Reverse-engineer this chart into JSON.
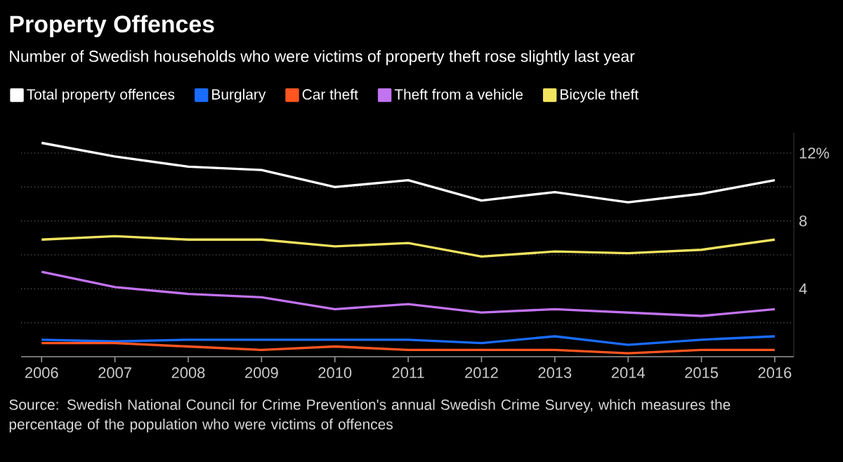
{
  "chart_data": {
    "type": "line",
    "title": "Property Offences",
    "subtitle": "Number of Swedish households who were victims of property theft rose slightly last year",
    "annotations": [
      "Source: Swedish National Council for Crime Prevention's annual Swedish Crime Survey, which measures the percentage of the population who were victims of offences"
    ],
    "categories": [
      "2006",
      "2007",
      "2008",
      "2009",
      "2010",
      "2011",
      "2012",
      "2013",
      "2014",
      "2015",
      "2016"
    ],
    "series": [
      {
        "name": "Total property offences",
        "color": "#ffffff",
        "values": [
          12.6,
          11.8,
          11.2,
          11.0,
          10.0,
          10.4,
          9.2,
          9.7,
          9.1,
          9.6,
          10.4
        ]
      },
      {
        "name": "Burglary",
        "color": "#1a6cff",
        "values": [
          1.0,
          0.9,
          1.0,
          1.0,
          1.0,
          1.0,
          0.8,
          1.2,
          0.7,
          1.0,
          1.2
        ]
      },
      {
        "name": "Car theft",
        "color": "#ff5520",
        "values": [
          0.8,
          0.8,
          0.6,
          0.4,
          0.6,
          0.4,
          0.4,
          0.4,
          0.2,
          0.4,
          0.4
        ]
      },
      {
        "name": "Theft from a vehicle",
        "color": "#c273f2",
        "values": [
          5.0,
          4.1,
          3.7,
          3.5,
          2.8,
          3.1,
          2.6,
          2.8,
          2.6,
          2.4,
          2.8
        ]
      },
      {
        "name": "Bicycle theft",
        "color": "#f2e35f",
        "values": [
          6.9,
          7.1,
          6.9,
          6.9,
          6.5,
          6.7,
          5.9,
          6.2,
          6.1,
          6.3,
          6.9
        ]
      }
    ],
    "ylim": [
      0,
      13.2
    ],
    "yticks": [
      {
        "value": 2,
        "label": null
      },
      4,
      {
        "value": 6,
        "label": null
      },
      8,
      {
        "value": 10,
        "label": null
      },
      {
        "value": 12,
        "label": "12%"
      }
    ],
    "grid": "y",
    "legend": "top left",
    "marker": "none",
    "line_style": "solid"
  }
}
